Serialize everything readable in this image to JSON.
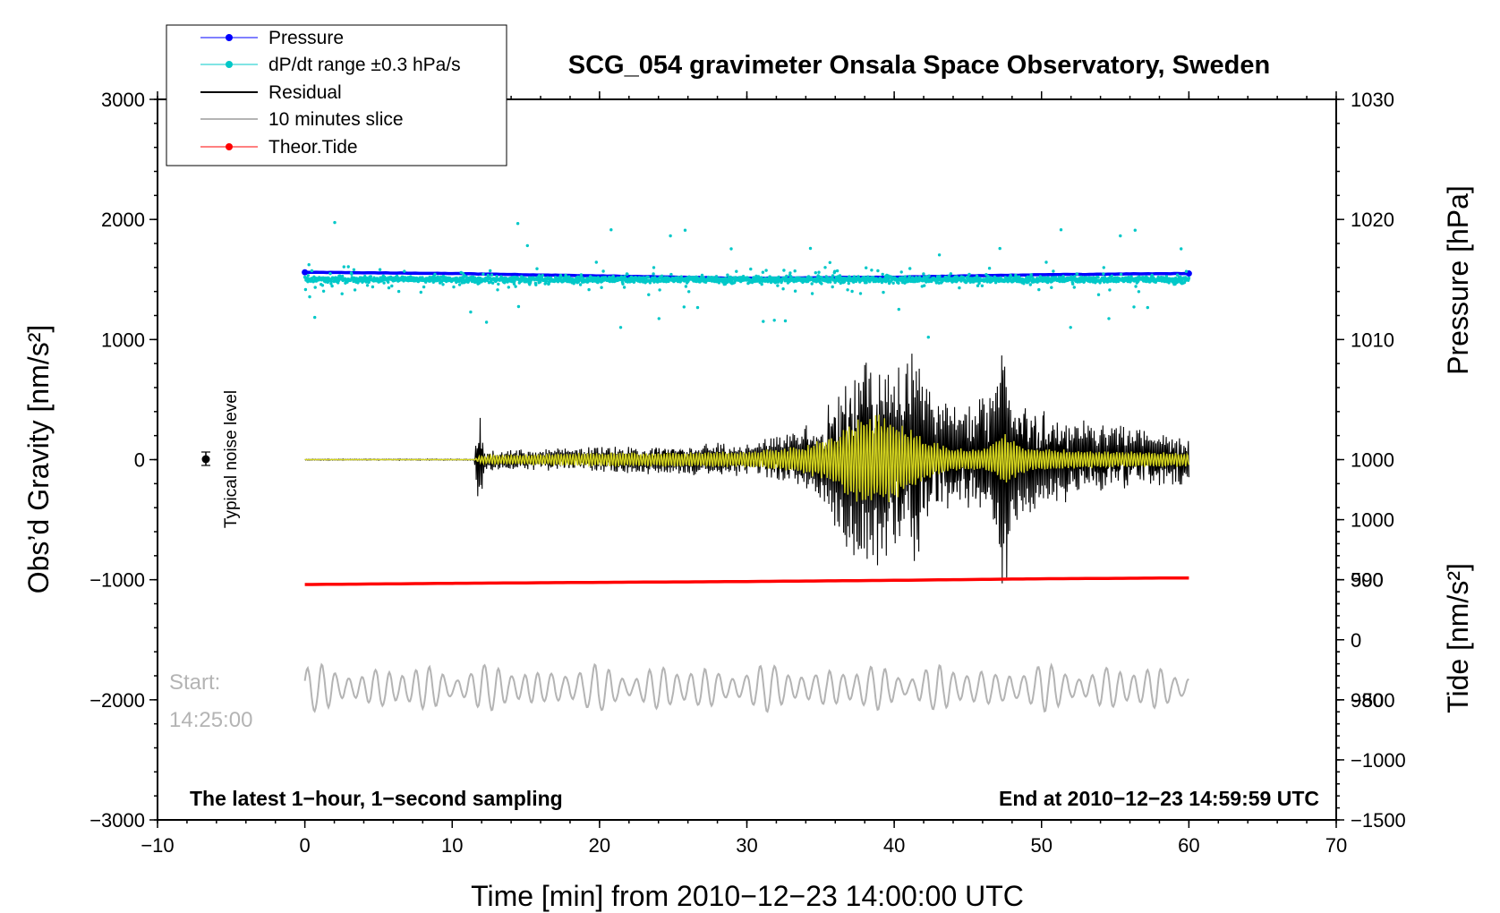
{
  "chart_data": {
    "type": "line",
    "title": "SCG_054 gravimeter Onsala Space Observatory, Sweden",
    "xlabel": "Time [min] from 2010−12−23 14:00:00 UTC",
    "ylabel_left": "Obs’d Gravity [nm/s²]",
    "ylabel_right_pressure": "Pressure [hPa]",
    "ylabel_right_tide": "Tide [nm/s²]",
    "xlim": [
      -10,
      70
    ],
    "ylim_left": [
      -3000,
      3000
    ],
    "x_ticks": [
      {
        "v": -10,
        "label": "−10"
      },
      {
        "v": 0,
        "label": "0"
      },
      {
        "v": 10,
        "label": "10"
      },
      {
        "v": 20,
        "label": "20"
      },
      {
        "v": 30,
        "label": "30"
      },
      {
        "v": 40,
        "label": "40"
      },
      {
        "v": 50,
        "label": "50"
      },
      {
        "v": 60,
        "label": "60"
      },
      {
        "v": 70,
        "label": "70"
      }
    ],
    "y_left_ticks": [
      {
        "v": 3000,
        "label": "3000"
      },
      {
        "v": 2000,
        "label": "2000"
      },
      {
        "v": 1000,
        "label": "1000"
      },
      {
        "v": 0,
        "label": "0"
      },
      {
        "v": -1000,
        "label": "−1000"
      },
      {
        "v": -2000,
        "label": "−2000"
      },
      {
        "v": -3000,
        "label": "−3000"
      }
    ],
    "pressure_axis": {
      "ticks": [
        {
          "v": 1030,
          "label": "1030"
        },
        {
          "v": 1020,
          "label": "1020"
        },
        {
          "v": 1010,
          "label": "1010"
        },
        {
          "v": 1000,
          "label": "1000"
        },
        {
          "v": 990,
          "label": "990"
        },
        {
          "v": 980,
          "label": "980"
        }
      ],
      "mapping": "pressure 1030 hPa at gravity 3000; 1 hPa = 100 nm/s²"
    },
    "tide_axis": {
      "ticks": [
        {
          "v": 1000,
          "label": "1000"
        },
        {
          "v": 500,
          "label": "500"
        },
        {
          "v": 0,
          "label": "0"
        },
        {
          "v": -500,
          "label": "−500"
        },
        {
          "v": -1000,
          "label": "−1000"
        },
        {
          "v": -1500,
          "label": "−1500"
        }
      ],
      "mapping": "tide 0 at gravity -1500; 1 nm/s² tide = 1 unit"
    },
    "legend": [
      {
        "name": "Pressure",
        "color": "#0000ff",
        "marker": true
      },
      {
        "name": "dP/dt range ±0.3 hPa/s",
        "color": "#00c8c8",
        "marker": true
      },
      {
        "name": "Residual",
        "color": "#000000",
        "marker": false
      },
      {
        "name": "10 minutes slice",
        "color": "#b4b4b4",
        "marker": false
      },
      {
        "name": "Theor.Tide",
        "color": "#ff0000",
        "marker": true
      }
    ],
    "series": [
      {
        "name": "Pressure",
        "unit": "hPa",
        "x": [
          0,
          10,
          20,
          30,
          40,
          50,
          60
        ],
        "values": [
          1015.6,
          1015.5,
          1015.3,
          1015.1,
          1015.2,
          1015.4,
          1015.5
        ]
      },
      {
        "name": "dP/dt range ±0.3 hPa/s",
        "unit": "gravity-axis centre",
        "center": 1500,
        "typical_spread": 60,
        "max_excursion": 620,
        "x_range": [
          0,
          60
        ]
      },
      {
        "name": "Residual",
        "unit": "nm/s²",
        "x_range": [
          0,
          60
        ],
        "envelope": {
          "x": [
            0,
            11.5,
            11.8,
            12.2,
            15,
            20,
            25,
            30,
            33,
            35,
            36,
            37,
            38,
            39,
            40,
            41,
            41.5,
            42,
            43,
            45,
            47,
            47.5,
            48,
            49,
            50,
            52,
            55,
            57,
            60
          ],
          "value": [
            5,
            5,
            520,
            100,
            90,
            110,
            130,
            150,
            220,
            350,
            600,
            850,
            900,
            900,
            850,
            950,
            1050,
            700,
            500,
            450,
            700,
            1350,
            600,
            500,
            450,
            350,
            300,
            250,
            200
          ]
        }
      },
      {
        "name": "Residual (filtered)",
        "color": "#d2d21e",
        "unit": "nm/s²",
        "x_range": [
          0,
          60
        ],
        "envelope": {
          "x": [
            0,
            11.5,
            12,
            20,
            30,
            34,
            36,
            37,
            38,
            39,
            40,
            41,
            42,
            44,
            46,
            47.5,
            49,
            52,
            55,
            60
          ],
          "value": [
            2,
            2,
            40,
            60,
            70,
            120,
            220,
            340,
            420,
            400,
            340,
            280,
            180,
            100,
            90,
            220,
            110,
            80,
            70,
            60
          ]
        }
      },
      {
        "name": "Theor.Tide",
        "unit": "nm/s²",
        "x": [
          0,
          10,
          20,
          30,
          40,
          50,
          60
        ],
        "values": [
          460,
          470,
          478,
          485,
          495,
          508,
          515
        ]
      },
      {
        "name": "10 minutes slice",
        "unit": "gravity-axis",
        "baseline": -1900,
        "amplitude": 200,
        "x_range": [
          0,
          60
        ],
        "slice_start": "14:25:00"
      }
    ],
    "annotations": {
      "noise_label": "Typical noise level",
      "noise_point": {
        "x": -7,
        "y": 0
      },
      "start_label": "Start:",
      "start_time": "14:25:00",
      "bottom_left": "The latest 1−hour, 1−second sampling",
      "bottom_right": "End at 2010−12−23 14:59:59 UTC"
    },
    "grid": false,
    "legend_position": "top-left"
  },
  "colors": {
    "pressure": "#0000ff",
    "dpdt": "#00c8c8",
    "residual": "#000000",
    "filtered": "#d2d21e",
    "slice": "#b4b4b4",
    "tide": "#ff0000"
  }
}
